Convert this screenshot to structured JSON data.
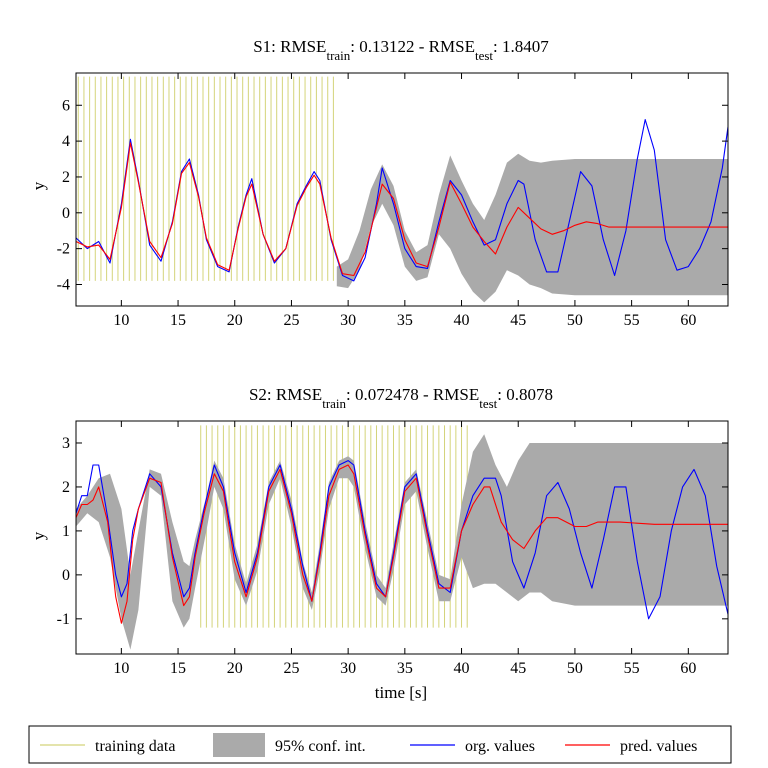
{
  "chart_data": [
    {
      "type": "line",
      "title": {
        "prefix": "S1: RMSE",
        "sub1": "train",
        "mid": ": 0.13122 - RMSE",
        "sub2": "test",
        "suffix": ": 1.8407"
      },
      "xlabel": "",
      "ylabel": "y",
      "xlim": [
        6,
        63.5
      ],
      "ylim": [
        -5.2,
        7.8
      ],
      "xticks": [
        10,
        15,
        20,
        25,
        30,
        35,
        40,
        45,
        50,
        55,
        60
      ],
      "yticks": [
        -4,
        -2,
        0,
        2,
        4,
        6
      ],
      "training_range": [
        6.2,
        29.0
      ],
      "training_line_spacing": 0.5,
      "training_ylim": [
        -3.8,
        7.6
      ],
      "series": [
        {
          "name": "org. values",
          "color": "#0000ff",
          "x": [
            6,
            7,
            8,
            9,
            10,
            10.8,
            11.5,
            12.5,
            13.5,
            14.5,
            15.3,
            16,
            16.8,
            17.5,
            18.5,
            19.5,
            20.3,
            21,
            21.5,
            22.5,
            23.5,
            24.5,
            25.5,
            26.3,
            27,
            27.5,
            28.5,
            29.5,
            30.5,
            31.5,
            32.5,
            33,
            34,
            35,
            36,
            37,
            38,
            39,
            40,
            41,
            42,
            43,
            44,
            45,
            45.5,
            46.5,
            47.5,
            48.5,
            49.5,
            50.5,
            51.5,
            52.5,
            53.5,
            54.5,
            55.5,
            56.2,
            57,
            58,
            59,
            60,
            61,
            62,
            63,
            63.5
          ],
          "y": [
            -1.4,
            -2.0,
            -1.6,
            -2.8,
            0.5,
            4.1,
            1.8,
            -1.8,
            -2.7,
            -0.5,
            2.3,
            3.0,
            1.0,
            -1.5,
            -3.0,
            -3.3,
            -0.8,
            1.0,
            1.9,
            -1.2,
            -2.8,
            -2.0,
            0.5,
            1.5,
            2.3,
            1.8,
            -1.5,
            -3.5,
            -3.8,
            -2.5,
            0.5,
            2.5,
            0.5,
            -2.0,
            -3.0,
            -3.1,
            -0.5,
            1.8,
            1.0,
            -0.5,
            -1.8,
            -1.5,
            0.5,
            1.8,
            1.6,
            -1.5,
            -3.3,
            -3.3,
            -0.5,
            2.3,
            1.5,
            -1.5,
            -3.5,
            -1.0,
            3.0,
            5.2,
            3.5,
            -1.5,
            -3.2,
            -3.0,
            -2.0,
            -0.5,
            2.5,
            4.8
          ]
        },
        {
          "name": "pred. values",
          "color": "#ff0000",
          "x": [
            6,
            7,
            8,
            9,
            10,
            10.8,
            11.5,
            12.5,
            13.5,
            14.5,
            15.3,
            16,
            16.8,
            17.5,
            18.5,
            19.5,
            20.3,
            21,
            21.5,
            22.5,
            23.5,
            24.5,
            25.5,
            26.3,
            27,
            27.5,
            28.5,
            29.5,
            30.5,
            31.5,
            32.5,
            33,
            34,
            35,
            36,
            37,
            38,
            39,
            40,
            41,
            42,
            43,
            44,
            45,
            46,
            47,
            48,
            49,
            50,
            51,
            52,
            53,
            55,
            57,
            60,
            63.5
          ],
          "y": [
            -1.6,
            -1.9,
            -1.8,
            -2.6,
            0.3,
            3.9,
            1.7,
            -1.6,
            -2.5,
            -0.6,
            2.2,
            2.8,
            0.9,
            -1.4,
            -2.9,
            -3.2,
            -0.9,
            0.9,
            1.6,
            -1.2,
            -2.7,
            -2.0,
            0.4,
            1.4,
            2.1,
            1.6,
            -1.4,
            -3.4,
            -3.5,
            -2.2,
            0.3,
            1.6,
            0.8,
            -1.5,
            -2.8,
            -3.0,
            -0.8,
            1.7,
            0.5,
            -0.8,
            -1.6,
            -2.3,
            -0.8,
            0.3,
            -0.3,
            -0.9,
            -1.2,
            -1.0,
            -0.7,
            -0.5,
            -0.6,
            -0.8,
            -0.8,
            -0.8,
            -0.8,
            -0.8
          ]
        }
      ],
      "band": {
        "name": "95% conf. int.",
        "color": "#aaaaaa",
        "x": [
          29,
          30,
          31,
          32,
          33,
          34,
          35,
          36,
          37,
          38,
          39,
          40,
          41,
          42,
          43,
          44,
          45,
          46,
          47,
          48,
          50,
          52,
          55,
          58,
          60,
          63.5
        ],
        "upper": [
          -3.0,
          -2.6,
          -1.0,
          1.3,
          2.7,
          1.5,
          -1.0,
          -2.2,
          -1.8,
          1.0,
          3.2,
          1.8,
          0.5,
          -0.4,
          1.0,
          2.8,
          3.3,
          2.9,
          2.8,
          2.9,
          3.0,
          3.0,
          3.0,
          3.0,
          3.0,
          3.0
        ],
        "lower": [
          -4.1,
          -4.2,
          -3.2,
          -0.8,
          0.5,
          -0.7,
          -3.0,
          -3.8,
          -3.6,
          -1.2,
          -2.0,
          -3.4,
          -4.4,
          -5.0,
          -4.4,
          -3.2,
          -3.5,
          -4.0,
          -4.2,
          -4.5,
          -4.6,
          -4.6,
          -4.6,
          -4.6,
          -4.6,
          -4.6
        ]
      }
    },
    {
      "type": "line",
      "title": {
        "prefix": "S2: RMSE",
        "sub1": "train",
        "mid": ": 0.072478 - RMSE",
        "sub2": "test",
        "suffix": ": 0.8078"
      },
      "xlabel": "time [s]",
      "ylabel": "y",
      "xlim": [
        6,
        63.5
      ],
      "ylim": [
        -1.8,
        3.5
      ],
      "xticks": [
        10,
        15,
        20,
        25,
        30,
        35,
        40,
        45,
        50,
        55,
        60
      ],
      "yticks": [
        -1,
        0,
        1,
        2,
        3
      ],
      "training_range": [
        17.0,
        40.5
      ],
      "training_line_spacing": 0.5,
      "training_ylim": [
        -1.2,
        3.4
      ],
      "series": [
        {
          "name": "org. values",
          "color": "#0000ff",
          "x": [
            6,
            6.5,
            7,
            7.5,
            8,
            8.8,
            9.5,
            10,
            10.5,
            11,
            11.5,
            12.5,
            13.5,
            14.5,
            15.5,
            16,
            16.5,
            17.3,
            18.2,
            19,
            20,
            21,
            22,
            23,
            24,
            25,
            26,
            26.8,
            27.5,
            28.3,
            29.2,
            30,
            30.5,
            31.5,
            32.5,
            33.3,
            34,
            35,
            36,
            37,
            38,
            39,
            40,
            41,
            42,
            43,
            43.5,
            44.5,
            45.5,
            46.5,
            47.5,
            48.5,
            49.5,
            50.5,
            51.5,
            52.5,
            53.5,
            54.5,
            55.5,
            56.5,
            57.5,
            58.5,
            59.5,
            60.5,
            61.5,
            62.5,
            63.5
          ],
          "y": [
            1.4,
            1.8,
            1.8,
            2.5,
            2.5,
            1.3,
            0.0,
            -0.5,
            -0.2,
            1.0,
            1.5,
            2.3,
            2.0,
            0.5,
            -0.5,
            -0.3,
            0.5,
            1.5,
            2.5,
            2.0,
            0.5,
            -0.4,
            0.5,
            2.0,
            2.5,
            1.5,
            0.2,
            -0.6,
            0.5,
            2.0,
            2.5,
            2.6,
            2.5,
            1.0,
            -0.2,
            -0.5,
            0.5,
            2.0,
            2.3,
            1.0,
            -0.2,
            -0.4,
            1.0,
            1.8,
            2.2,
            2.2,
            1.8,
            0.3,
            -0.3,
            0.5,
            1.8,
            2.1,
            1.5,
            0.5,
            -0.3,
            0.8,
            2.0,
            2.0,
            0.3,
            -1.0,
            -0.5,
            1.0,
            2.0,
            2.4,
            1.8,
            0.2,
            -0.9
          ]
        },
        {
          "name": "pred. values",
          "color": "#ff0000",
          "x": [
            6,
            6.5,
            7,
            7.5,
            8,
            8.8,
            9.5,
            10,
            10.5,
            11,
            11.5,
            12.5,
            13.5,
            14.5,
            15.5,
            16,
            16.5,
            17.3,
            18.2,
            19,
            20,
            21,
            22,
            23,
            24,
            25,
            26,
            26.8,
            27.5,
            28.3,
            29.2,
            30,
            30.5,
            31.5,
            32.5,
            33.3,
            34,
            35,
            36,
            37,
            38,
            39,
            40,
            41,
            42,
            42.5,
            43.5,
            44.5,
            45.5,
            46.5,
            47.5,
            48.5,
            50,
            51,
            52,
            54,
            57,
            60,
            63.5
          ],
          "y": [
            1.3,
            1.6,
            1.6,
            1.7,
            2.0,
            1.2,
            -0.5,
            -1.1,
            -0.6,
            0.8,
            1.5,
            2.2,
            2.1,
            0.4,
            -0.7,
            -0.5,
            0.4,
            1.4,
            2.3,
            1.9,
            0.3,
            -0.5,
            0.4,
            1.9,
            2.4,
            1.4,
            0.0,
            -0.6,
            0.4,
            1.8,
            2.4,
            2.5,
            2.3,
            0.9,
            -0.3,
            -0.5,
            0.4,
            1.9,
            2.2,
            0.9,
            -0.3,
            -0.3,
            1.0,
            1.6,
            2.0,
            2.0,
            1.2,
            0.8,
            0.6,
            1.0,
            1.3,
            1.3,
            1.1,
            1.1,
            1.2,
            1.2,
            1.15,
            1.15,
            1.15
          ]
        }
      ],
      "band": {
        "name": "95% conf. int.",
        "color": "#aaaaaa",
        "x": [
          6,
          7,
          8,
          9,
          10,
          10.8,
          11.5,
          12.5,
          13.5,
          14.5,
          15.5,
          16,
          16.5,
          17.5,
          18.2,
          19,
          20,
          21,
          22,
          23,
          24,
          25,
          26,
          26.8,
          27.5,
          28.3,
          29.2,
          30,
          30.5,
          31.5,
          32.5,
          33.3,
          34,
          35,
          36,
          37,
          38,
          39,
          40,
          41,
          42,
          43,
          44,
          45,
          46,
          47,
          48,
          50,
          52,
          55,
          58,
          60,
          63.5
        ],
        "upper": [
          1.5,
          1.8,
          2.2,
          2.3,
          1.5,
          0.0,
          1.0,
          2.4,
          2.3,
          1.2,
          0.3,
          0.2,
          0.8,
          1.8,
          2.6,
          2.2,
          0.7,
          -0.2,
          0.7,
          2.1,
          2.6,
          1.7,
          0.3,
          -0.4,
          0.7,
          2.1,
          2.6,
          2.7,
          2.6,
          1.2,
          0.0,
          -0.3,
          0.7,
          2.1,
          2.4,
          1.2,
          0.0,
          -0.1,
          1.6,
          2.8,
          3.2,
          2.5,
          2.0,
          2.6,
          3.0,
          3.0,
          3.0,
          3.0,
          3.0,
          3.0,
          3.0,
          3.0,
          3.0
        ],
        "lower": [
          1.1,
          1.4,
          1.2,
          0.4,
          -1.0,
          -1.7,
          -0.8,
          2.0,
          1.8,
          -0.6,
          -1.2,
          -1.0,
          -0.3,
          1.0,
          2.0,
          1.5,
          -0.1,
          -0.7,
          0.1,
          1.6,
          2.2,
          1.1,
          -0.3,
          -0.8,
          0.1,
          1.5,
          2.2,
          2.2,
          2.0,
          0.6,
          -0.5,
          -0.7,
          0.1,
          1.6,
          1.9,
          0.6,
          -0.6,
          -0.6,
          0.4,
          -0.3,
          -0.2,
          -0.2,
          -0.4,
          -0.6,
          -0.4,
          -0.4,
          -0.6,
          -0.7,
          -0.7,
          -0.7,
          -0.7,
          -0.7,
          -0.7
        ]
      }
    }
  ],
  "legend": {
    "items": [
      {
        "key": "training",
        "label": "training data",
        "color": "#d4d47a"
      },
      {
        "key": "band",
        "label": "95% conf. int.",
        "color": "#aaaaaa"
      },
      {
        "key": "org",
        "label": "org. values",
        "color": "#0000ff"
      },
      {
        "key": "pred",
        "label": "pred. values",
        "color": "#ff0000"
      }
    ]
  }
}
